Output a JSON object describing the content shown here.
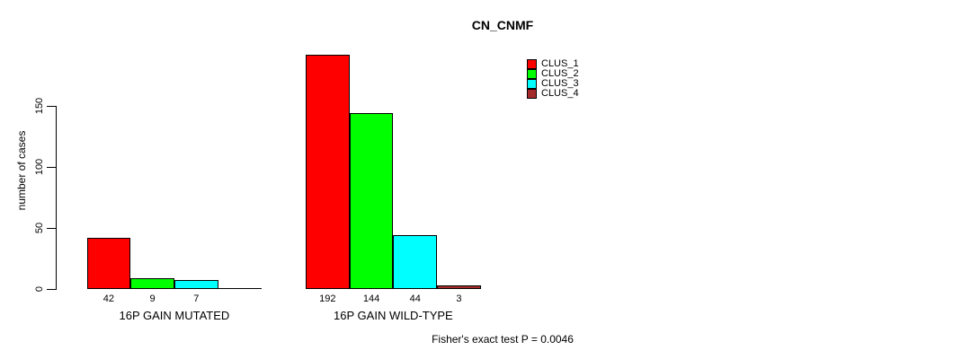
{
  "title": "CN_CNMF",
  "footer": "Fisher's exact test P = 0.0046",
  "chart_data": {
    "type": "bar",
    "title": "CN_CNMF",
    "categories": [
      "16P GAIN MUTATED",
      "16P GAIN WILD-TYPE"
    ],
    "series": [
      {
        "name": "CLUS_1",
        "color": "#FF0000",
        "values": [
          42,
          192
        ]
      },
      {
        "name": "CLUS_2",
        "color": "#00FF00",
        "values": [
          9,
          144
        ]
      },
      {
        "name": "CLUS_3",
        "color": "#00FFFF",
        "values": [
          7,
          44
        ]
      },
      {
        "name": "CLUS_4",
        "color": "#A52A2A",
        "values": [
          0,
          3
        ]
      }
    ],
    "xlabel": "",
    "ylabel": "number of cases",
    "yticks": [
      0,
      50,
      100,
      150
    ],
    "ylim": [
      0,
      195
    ],
    "grid": false,
    "legend_position": "top-right",
    "annotation": "Fisher's exact test P = 0.0046"
  }
}
